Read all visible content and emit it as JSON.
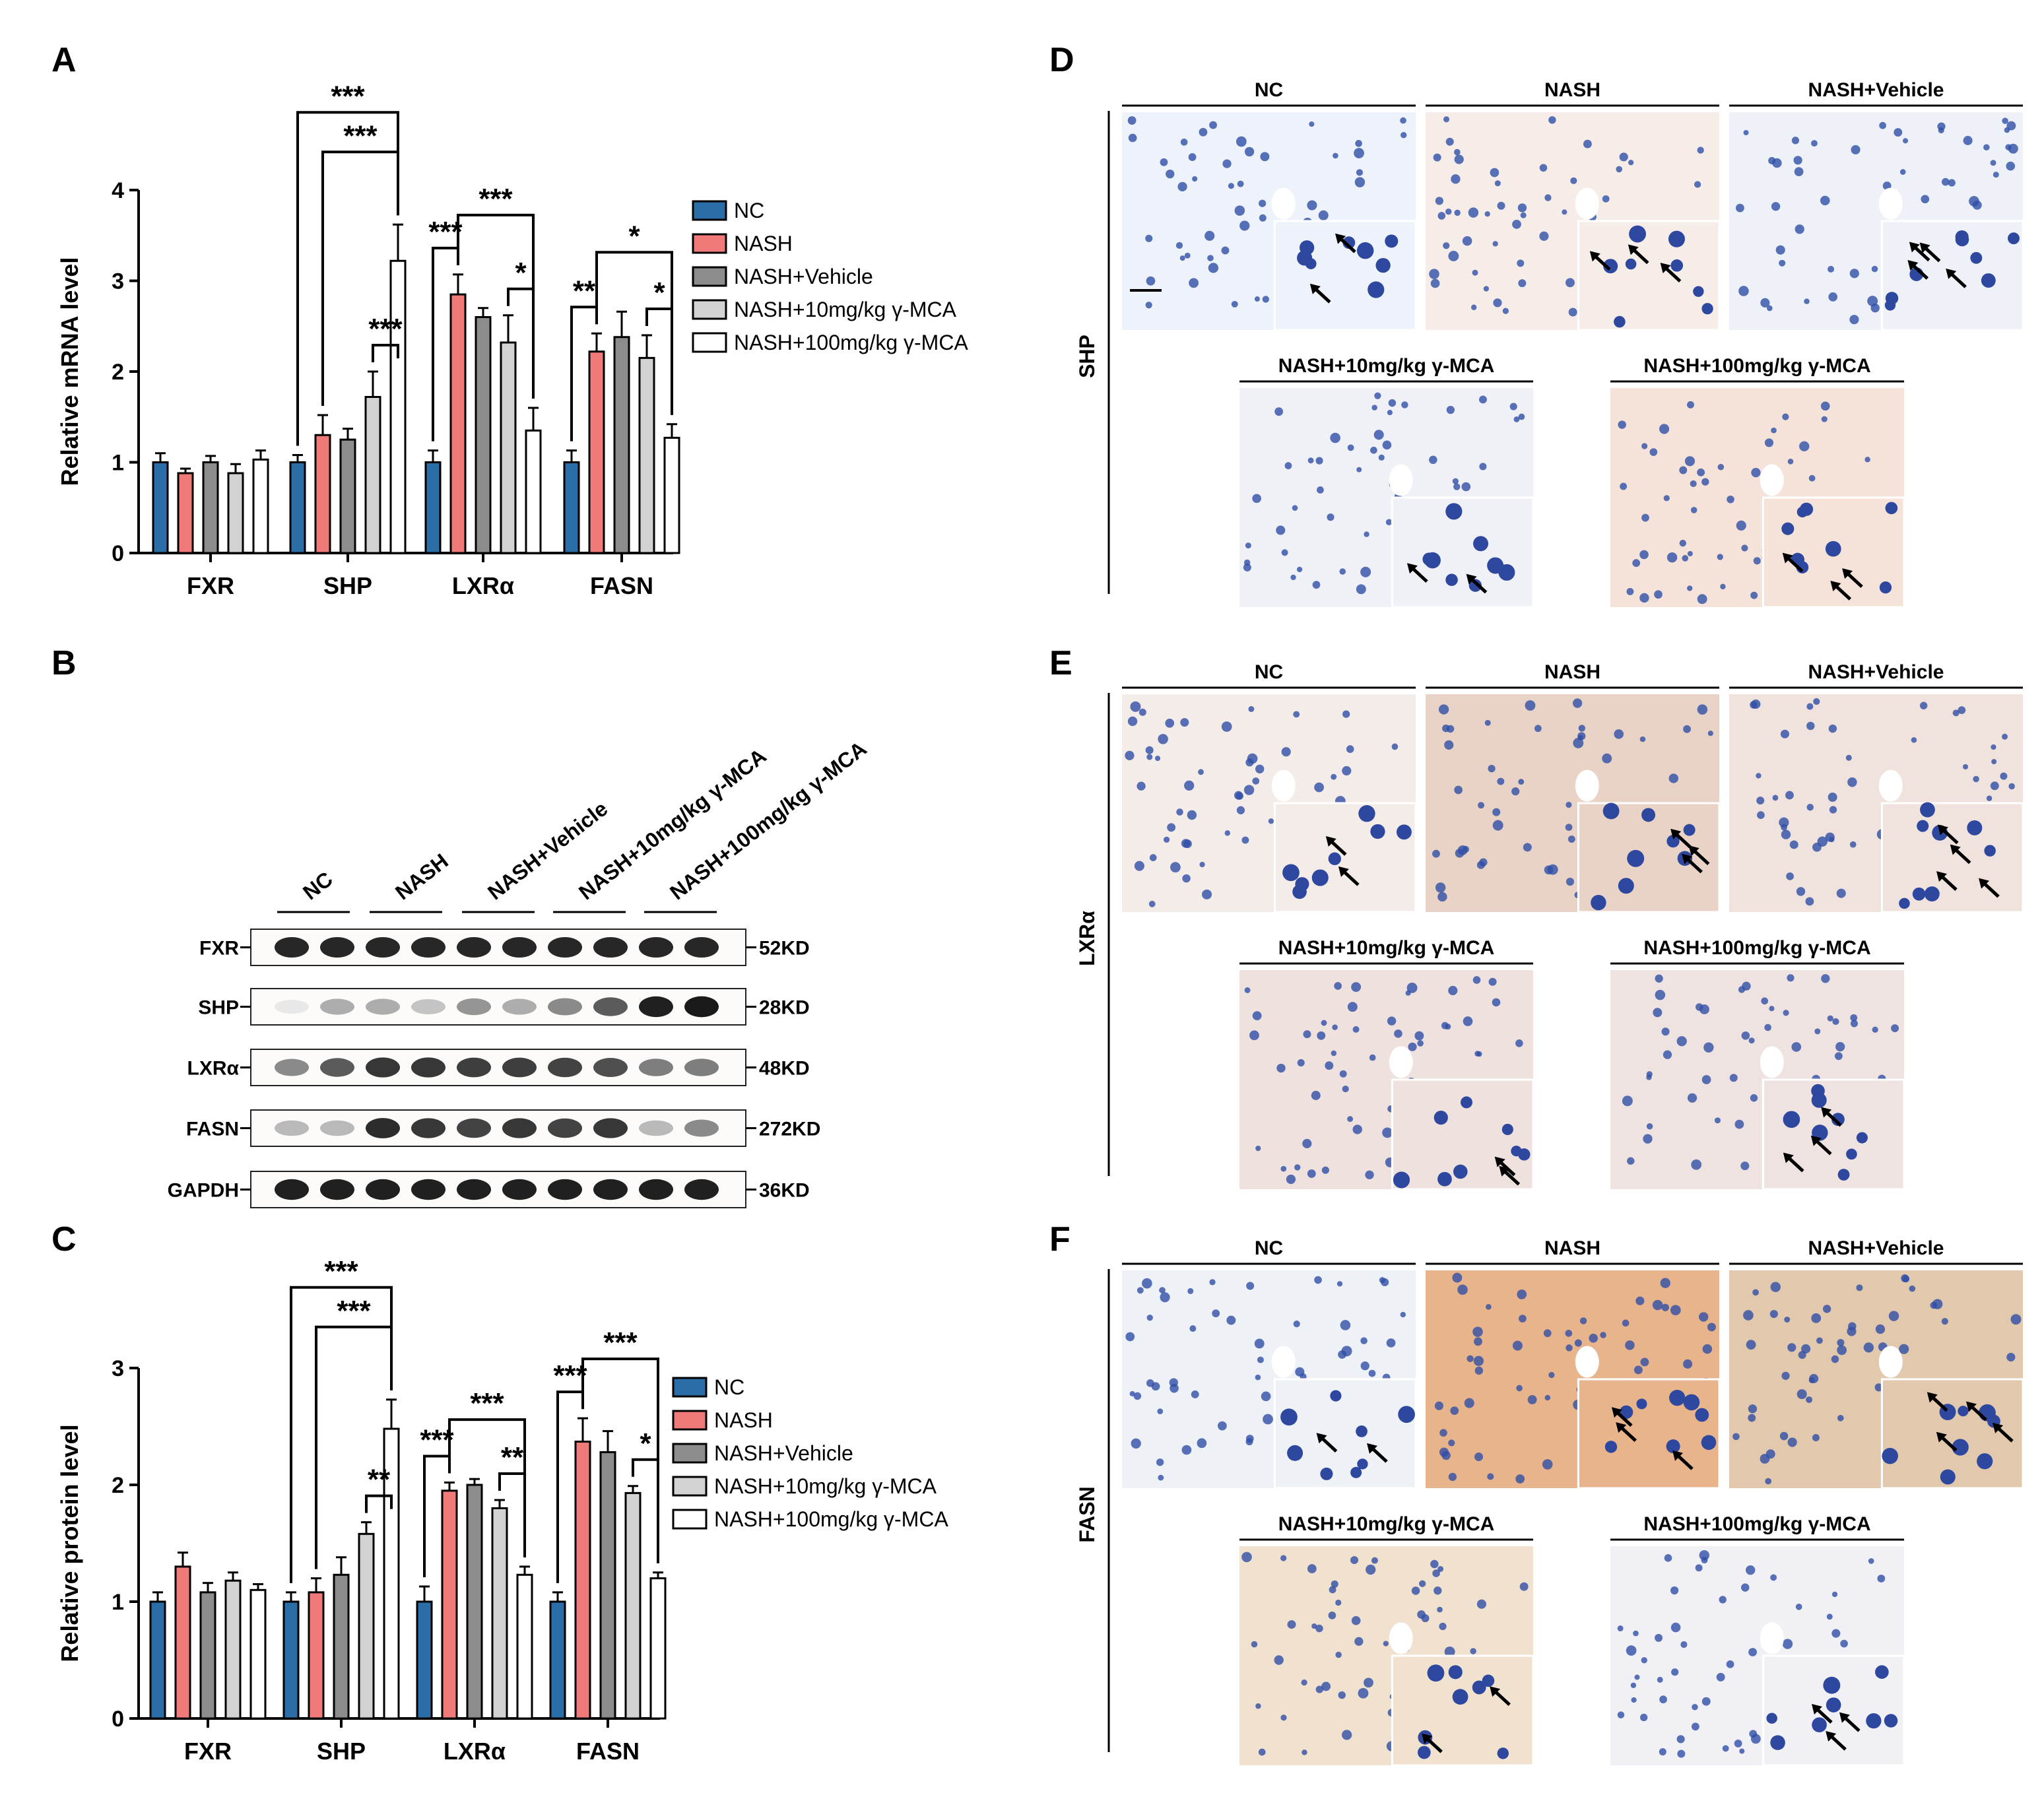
{
  "panel_letters": {
    "A": "A",
    "B": "B",
    "C": "C",
    "D": "D",
    "E": "E",
    "F": "F"
  },
  "colors": {
    "NC": "#2b6da6",
    "NASH": "#f07a7a",
    "NASH+Vehicle": "#8c8c8c",
    "NASH+10mg/kg γ-MCA": "#d2d2d2",
    "NASH+100mg/kg γ-MCA": "#ffffff"
  },
  "chart_data": [
    {
      "panel": "A",
      "type": "bar",
      "ylabel": "Relative mRNA level",
      "ylim": [
        0,
        4
      ],
      "yticks": [
        "0",
        "1",
        "2",
        "3",
        "4"
      ],
      "categories": [
        "FXR",
        "SHP",
        "LXRα",
        "FASN"
      ],
      "series": [
        {
          "name": "NC",
          "values": [
            1.0,
            1.0,
            1.0,
            1.0
          ],
          "errors": [
            0.1,
            0.08,
            0.13,
            0.13
          ]
        },
        {
          "name": "NASH",
          "values": [
            0.88,
            1.3,
            2.85,
            2.22
          ],
          "errors": [
            0.05,
            0.22,
            0.22,
            0.2
          ]
        },
        {
          "name": "NASH+Vehicle",
          "values": [
            1.0,
            1.25,
            2.6,
            2.38
          ],
          "errors": [
            0.07,
            0.12,
            0.1,
            0.28
          ]
        },
        {
          "name": "NASH+10mg/kg γ-MCA",
          "values": [
            0.88,
            1.72,
            2.32,
            2.15
          ],
          "errors": [
            0.1,
            0.28,
            0.3,
            0.25
          ]
        },
        {
          "name": "NASH+100mg/kg γ-MCA",
          "values": [
            1.03,
            3.22,
            1.35,
            1.27
          ],
          "errors": [
            0.1,
            0.4,
            0.25,
            0.15
          ]
        }
      ],
      "significance": [
        {
          "category": "SHP",
          "from": 0,
          "to": 4,
          "label": "***"
        },
        {
          "category": "SHP",
          "from": 1,
          "to": 4,
          "label": "***"
        },
        {
          "category": "SHP",
          "from": 3,
          "to": 4,
          "label": "***"
        },
        {
          "category": "LXRα",
          "from": 0,
          "to": 1,
          "label": "***"
        },
        {
          "category": "LXRα",
          "from": 1,
          "to": 4,
          "label": "***"
        },
        {
          "category": "LXRα",
          "from": 3,
          "to": 4,
          "label": "*"
        },
        {
          "category": "FASN",
          "from": 0,
          "to": 1,
          "label": "**"
        },
        {
          "category": "FASN",
          "from": 1,
          "to": 4,
          "label": "*"
        },
        {
          "category": "FASN",
          "from": 3,
          "to": 4,
          "label": "*"
        }
      ]
    },
    {
      "panel": "C",
      "type": "bar",
      "ylabel": "Relative protein level",
      "ylim": [
        0,
        3
      ],
      "yticks": [
        "0",
        "1",
        "2",
        "3"
      ],
      "categories": [
        "FXR",
        "SHP",
        "LXRα",
        "FASN"
      ],
      "series": [
        {
          "name": "NC",
          "values": [
            1.0,
            1.0,
            1.0,
            1.0
          ],
          "errors": [
            0.08,
            0.08,
            0.13,
            0.08
          ]
        },
        {
          "name": "NASH",
          "values": [
            1.3,
            1.08,
            1.95,
            2.37
          ],
          "errors": [
            0.12,
            0.12,
            0.07,
            0.2
          ]
        },
        {
          "name": "NASH+Vehicle",
          "values": [
            1.08,
            1.23,
            2.0,
            2.28
          ],
          "errors": [
            0.08,
            0.15,
            0.05,
            0.18
          ]
        },
        {
          "name": "NASH+10mg/kg γ-MCA",
          "values": [
            1.18,
            1.58,
            1.8,
            1.93
          ],
          "errors": [
            0.07,
            0.1,
            0.07,
            0.06
          ]
        },
        {
          "name": "NASH+100mg/kg γ-MCA",
          "values": [
            1.1,
            2.48,
            1.23,
            1.2
          ],
          "errors": [
            0.05,
            0.25,
            0.07,
            0.05
          ]
        }
      ],
      "significance": [
        {
          "category": "SHP",
          "from": 0,
          "to": 4,
          "label": "***"
        },
        {
          "category": "SHP",
          "from": 1,
          "to": 4,
          "label": "***"
        },
        {
          "category": "SHP",
          "from": 3,
          "to": 4,
          "label": "**"
        },
        {
          "category": "LXRα",
          "from": 0,
          "to": 1,
          "label": "***"
        },
        {
          "category": "LXRα",
          "from": 1,
          "to": 4,
          "label": "***"
        },
        {
          "category": "LXRα",
          "from": 3,
          "to": 4,
          "label": "**"
        },
        {
          "category": "FASN",
          "from": 0,
          "to": 1,
          "label": "***"
        },
        {
          "category": "FASN",
          "from": 1,
          "to": 4,
          "label": "***"
        },
        {
          "category": "FASN",
          "from": 3,
          "to": 4,
          "label": "*"
        }
      ]
    }
  ],
  "legend": [
    "NC",
    "NASH",
    "NASH+Vehicle",
    "NASH+10mg/kg γ-MCA",
    "NASH+100mg/kg γ-MCA"
  ],
  "western_blot": {
    "groups": [
      "NC",
      "NASH",
      "NASH+Vehicle",
      "NASH+10mg/kg γ-MCA",
      "NASH+100mg/kg γ-MCA"
    ],
    "proteins": [
      {
        "name": "FXR",
        "size": "52KD",
        "intensity": [
          0.92,
          0.92,
          0.92,
          0.92,
          0.92,
          0.92,
          0.92,
          0.92,
          0.92,
          0.92
        ]
      },
      {
        "name": "SHP",
        "size": "28KD",
        "intensity": [
          0.1,
          0.35,
          0.35,
          0.25,
          0.45,
          0.35,
          0.5,
          0.7,
          0.95,
          0.98
        ]
      },
      {
        "name": "LXRα",
        "size": "48KD",
        "intensity": [
          0.5,
          0.7,
          0.85,
          0.85,
          0.82,
          0.82,
          0.8,
          0.75,
          0.55,
          0.55
        ]
      },
      {
        "name": "FASN",
        "size": "272KD",
        "intensity": [
          0.3,
          0.3,
          0.9,
          0.85,
          0.8,
          0.85,
          0.8,
          0.85,
          0.3,
          0.5
        ]
      },
      {
        "name": "GAPDH",
        "size": "36KD",
        "intensity": [
          0.95,
          0.95,
          0.95,
          0.95,
          0.95,
          0.95,
          0.95,
          0.95,
          0.95,
          0.95
        ]
      }
    ]
  },
  "ihc": {
    "top_titles": [
      "NC",
      "NASH",
      "NASH+Vehicle"
    ],
    "bottom_titles": [
      "NASH+10mg/kg γ-MCA",
      "NASH+100mg/kg γ-MCA"
    ],
    "rows": [
      {
        "panel": "D",
        "stain": "SHP"
      },
      {
        "panel": "E",
        "stain": "LXRα"
      },
      {
        "panel": "F",
        "stain": "FASN"
      }
    ]
  }
}
